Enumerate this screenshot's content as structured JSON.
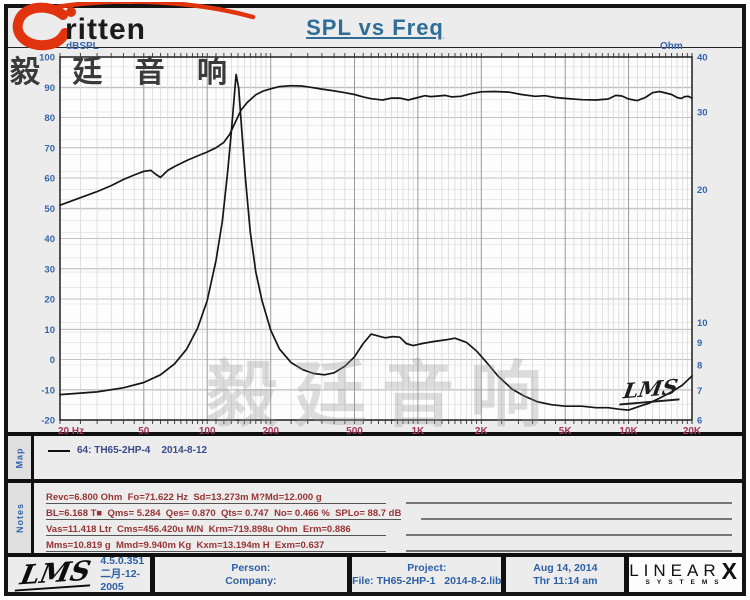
{
  "window": {
    "title": "SPL vs Freq"
  },
  "brand": {
    "name": "ritten",
    "cn": "毅 廷 音 响"
  },
  "chart": {
    "y_left_corner_label": "dBSPL",
    "y_right_corner_label": "Ohm",
    "watermark_cn": "毅廷音响",
    "watermark_lms": "LMS"
  },
  "chart_data": {
    "type": "line",
    "title": "SPL vs Freq",
    "x_axis": {
      "scale": "log",
      "min": 20,
      "max": 20000,
      "ticks": [
        {
          "f": 20,
          "label": "20 Hz"
        },
        {
          "f": 50,
          "label": "50"
        },
        {
          "f": 100,
          "label": "100"
        },
        {
          "f": 200,
          "label": "200"
        },
        {
          "f": 500,
          "label": "500"
        },
        {
          "f": 1000,
          "label": "1K"
        },
        {
          "f": 2000,
          "label": "2K"
        },
        {
          "f": 5000,
          "label": "5K"
        },
        {
          "f": 10000,
          "label": "10K"
        },
        {
          "f": 20000,
          "label": "20K"
        }
      ]
    },
    "y_left": {
      "label": "dBSPL",
      "min": -20,
      "max": 100,
      "step": 10
    },
    "y_right": {
      "label": "Ohm",
      "scale": "log",
      "min": 6,
      "max": 40,
      "ticks": [
        40,
        30,
        20,
        10,
        9,
        8,
        7,
        6
      ]
    },
    "grid": {
      "v_major": [
        50,
        100,
        200,
        500,
        1000,
        2000,
        5000,
        10000,
        20000
      ],
      "v_minor": [
        25,
        30,
        35,
        40,
        45,
        55,
        60,
        65,
        70,
        75,
        80,
        85,
        90,
        95,
        110,
        120,
        130,
        140,
        150,
        160,
        170,
        180,
        190,
        250,
        300,
        350,
        400,
        450,
        550,
        600,
        650,
        700,
        750,
        800,
        850,
        900,
        950,
        1100,
        1200,
        1300,
        1400,
        1500,
        1600,
        1700,
        1800,
        1900,
        2500,
        3000,
        3500,
        4000,
        4500,
        5500,
        6000,
        6500,
        7000,
        7500,
        8000,
        8500,
        9000,
        9500,
        11000,
        12000,
        13000,
        14000,
        15000,
        16000,
        17000,
        18000,
        19000
      ],
      "ohm_minor": [
        6.5,
        7,
        7.5,
        8,
        8.5,
        9,
        9.5,
        10,
        11,
        12,
        13,
        14,
        15,
        16,
        17,
        18,
        19,
        20,
        22,
        24,
        26,
        28,
        30,
        32,
        34,
        36,
        38
      ]
    },
    "legend": [
      {
        "name": "64: TH65-2HP-4    2014-8-12",
        "color": "#111111"
      }
    ],
    "series": [
      {
        "name": "SPL (dB)",
        "axis": "left",
        "points": [
          [
            20,
            51
          ],
          [
            25,
            53.5
          ],
          [
            30,
            55.5
          ],
          [
            35,
            57.5
          ],
          [
            40,
            59.5
          ],
          [
            45,
            61
          ],
          [
            50,
            62.2
          ],
          [
            54,
            62.5
          ],
          [
            57,
            61.2
          ],
          [
            60,
            60.2
          ],
          [
            65,
            62.5
          ],
          [
            70,
            63.8
          ],
          [
            80,
            65.8
          ],
          [
            90,
            67.3
          ],
          [
            100,
            68.6
          ],
          [
            110,
            70
          ],
          [
            120,
            71.8
          ],
          [
            128,
            74.5
          ],
          [
            135,
            78
          ],
          [
            145,
            82.5
          ],
          [
            155,
            85
          ],
          [
            170,
            87.5
          ],
          [
            185,
            88.8
          ],
          [
            200,
            89.5
          ],
          [
            220,
            90.2
          ],
          [
            250,
            90.5
          ],
          [
            280,
            90.4
          ],
          [
            310,
            90
          ],
          [
            350,
            89.4
          ],
          [
            400,
            88.8
          ],
          [
            450,
            88.2
          ],
          [
            500,
            87.6
          ],
          [
            550,
            86.8
          ],
          [
            600,
            86.2
          ],
          [
            680,
            85.8
          ],
          [
            750,
            86.4
          ],
          [
            820,
            86.4
          ],
          [
            900,
            85.8
          ],
          [
            1000,
            86.6
          ],
          [
            1080,
            87.2
          ],
          [
            1150,
            86.9
          ],
          [
            1250,
            87.1
          ],
          [
            1350,
            87.3
          ],
          [
            1450,
            86.8
          ],
          [
            1600,
            87
          ],
          [
            1800,
            87.9
          ],
          [
            2000,
            88.5
          ],
          [
            2300,
            88.6
          ],
          [
            2700,
            88.4
          ],
          [
            3100,
            87.6
          ],
          [
            3600,
            87
          ],
          [
            4000,
            87.2
          ],
          [
            4500,
            86.6
          ],
          [
            5000,
            86.3
          ],
          [
            6000,
            85.9
          ],
          [
            7000,
            85.8
          ],
          [
            8000,
            86.1
          ],
          [
            8700,
            87.3
          ],
          [
            9300,
            87.1
          ],
          [
            10000,
            86.1
          ],
          [
            11000,
            85.6
          ],
          [
            12000,
            86.6
          ],
          [
            13000,
            88.2
          ],
          [
            14000,
            88.6
          ],
          [
            15000,
            88.1
          ],
          [
            16000,
            87.6
          ],
          [
            17000,
            86.6
          ],
          [
            17800,
            86.3
          ],
          [
            18500,
            86.9
          ],
          [
            19200,
            87
          ],
          [
            20000,
            86.4
          ]
        ]
      },
      {
        "name": "Impedance (Ohm)",
        "axis": "right",
        "points": [
          [
            20,
            6.85
          ],
          [
            30,
            6.95
          ],
          [
            40,
            7.1
          ],
          [
            50,
            7.3
          ],
          [
            60,
            7.6
          ],
          [
            70,
            8.05
          ],
          [
            80,
            8.7
          ],
          [
            90,
            9.7
          ],
          [
            100,
            11.2
          ],
          [
            110,
            13.8
          ],
          [
            118,
            17
          ],
          [
            125,
            22
          ],
          [
            130,
            27
          ],
          [
            134,
            32
          ],
          [
            137,
            36.5
          ],
          [
            141,
            34
          ],
          [
            146,
            27
          ],
          [
            152,
            21
          ],
          [
            160,
            16
          ],
          [
            170,
            13
          ],
          [
            182,
            11.2
          ],
          [
            200,
            9.6
          ],
          [
            220,
            8.7
          ],
          [
            250,
            8.1
          ],
          [
            285,
            7.8
          ],
          [
            320,
            7.65
          ],
          [
            360,
            7.6
          ],
          [
            400,
            7.68
          ],
          [
            450,
            7.95
          ],
          [
            500,
            8.35
          ],
          [
            550,
            8.95
          ],
          [
            600,
            9.4
          ],
          [
            650,
            9.3
          ],
          [
            700,
            9.22
          ],
          [
            760,
            9.28
          ],
          [
            820,
            9.25
          ],
          [
            880,
            8.95
          ],
          [
            950,
            8.85
          ],
          [
            1050,
            8.95
          ],
          [
            1200,
            9.05
          ],
          [
            1350,
            9.12
          ],
          [
            1500,
            9.2
          ],
          [
            1700,
            9.0
          ],
          [
            1900,
            8.6
          ],
          [
            2100,
            8.15
          ],
          [
            2400,
            7.55
          ],
          [
            2800,
            7.05
          ],
          [
            3200,
            6.8
          ],
          [
            3700,
            6.6
          ],
          [
            4300,
            6.5
          ],
          [
            5000,
            6.45
          ],
          [
            6000,
            6.45
          ],
          [
            7000,
            6.4
          ],
          [
            8000,
            6.4
          ],
          [
            9000,
            6.35
          ],
          [
            10000,
            6.32
          ],
          [
            11000,
            6.42
          ],
          [
            12500,
            6.55
          ],
          [
            14000,
            6.72
          ],
          [
            16000,
            6.95
          ],
          [
            18000,
            7.2
          ],
          [
            20000,
            7.55
          ]
        ]
      }
    ]
  },
  "map": {
    "header": "Map",
    "legend": "64: TH65-2HP-4    2014-8-12"
  },
  "notes": {
    "header": "Notes",
    "lines": [
      "Revc=6.800 Ohm  Fo=71.622 Hz  Sd=13.273m M?Md=12.000 g",
      "BL=6.168 T■  Qms= 5.284  Qes= 0.870  Qts= 0.747  No= 0.466 %  SPLo= 88.7 dB",
      "Vas=11.418 Ltr  Cms=456.420u M/N  Krm=719.898u Ohm  Erm=0.886",
      "Mms=10.819 g  Mmd=9.940m Kg  Kxm=13.194m H  Exm=0.637"
    ]
  },
  "footer": {
    "lms_logo": "LMS",
    "version": "4.5.0.351",
    "version_date": "二月-12-2005",
    "person_label": "Person:",
    "company_label": "Company:",
    "project_label": "Project:",
    "file_label": "File: TH65-2HP-1   2014-8-2.lib",
    "date": "Aug 14, 2014",
    "time": "Thr 11:14 am",
    "linearx": {
      "name": "LINEAR",
      "x": "X",
      "sub": "SYSTEMS"
    }
  },
  "colors": {
    "title_blue": "#2f6c96",
    "axis_blue": "#3565ae",
    "freq_red": "#a8355a",
    "notes_maroon": "#993333",
    "legend_navy": "#3a4a8a",
    "footer_blue": "#2d5fa6",
    "brand_red": "#e2330f",
    "curve_black": "#161616"
  }
}
